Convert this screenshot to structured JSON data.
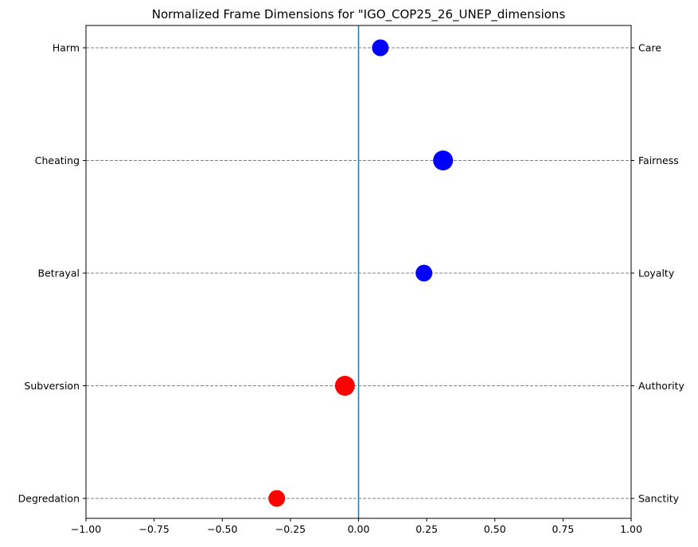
{
  "chart_data": {
    "type": "scatter",
    "title": "Normalized Frame Dimensions for \"IGO_COP25_26_UNEP_dimensions",
    "xlim": [
      -1.0,
      1.0
    ],
    "x_ticks": [
      "−1.00",
      "−0.75",
      "−0.50",
      "−0.25",
      "0.00",
      "0.25",
      "0.50",
      "0.75",
      "1.00"
    ],
    "x_tick_values": [
      -1.0,
      -0.75,
      -0.5,
      -0.25,
      0.0,
      0.25,
      0.5,
      0.75,
      1.0
    ],
    "grid": "horizontal dashed at each category",
    "vertical_reference_line": 0,
    "colors": {
      "positive": "#0000ff",
      "negative": "#ff0000",
      "reference_line": "#1f77b4",
      "grid": "#808080"
    },
    "points": [
      {
        "left_label": "Harm",
        "right_label": "Care",
        "value": 0.08,
        "color": "#0000ff",
        "size": "medium"
      },
      {
        "left_label": "Cheating",
        "right_label": "Fairness",
        "value": 0.31,
        "color": "#0000ff",
        "size": "large"
      },
      {
        "left_label": "Betrayal",
        "right_label": "Loyalty",
        "value": 0.24,
        "color": "#0000ff",
        "size": "medium"
      },
      {
        "left_label": "Subversion",
        "right_label": "Authority",
        "value": -0.05,
        "color": "#ff0000",
        "size": "large"
      },
      {
        "left_label": "Degredation",
        "right_label": "Sanctity",
        "value": -0.3,
        "color": "#ff0000",
        "size": "medium"
      }
    ]
  }
}
